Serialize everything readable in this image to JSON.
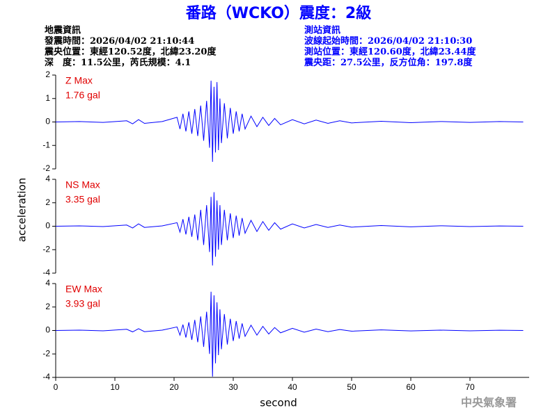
{
  "header": {
    "title": "番路（WCKO）震度：2級",
    "left_lines": [
      "地震資訊",
      "發震時間：2026/04/02 21:10:44",
      "震央位置：東經120.52度，北緯23.20度",
      "深　度：11.5公里，芮氏規模：4.1"
    ],
    "right_lines": [
      "測站資訊",
      "波線起始時間：2026/04/02 21:10:30",
      "測站位置：東經120.60度，北緯23.44度",
      "震央距：27.5公里，反方位角：197.8度"
    ]
  },
  "y_label": "acceleration",
  "x_label": "second",
  "footer": "中央氣象署",
  "chart_data": [
    {
      "type": "line",
      "label": "Z Max",
      "max_label": "1.76 gal",
      "color": "#0000ff",
      "label_color": "#e00000",
      "xlim": [
        0,
        80
      ],
      "ylim": [
        -2,
        2
      ],
      "yticks": [
        -2,
        -1,
        0,
        1,
        2
      ],
      "x": [
        0,
        4,
        8,
        12,
        13,
        14,
        15,
        18,
        20.5,
        21,
        21.5,
        22,
        22.5,
        23,
        23.5,
        24,
        24.5,
        25,
        25.5,
        26,
        26.25,
        26.5,
        26.75,
        27,
        27.25,
        27.5,
        27.75,
        28,
        28.5,
        29,
        29.5,
        30,
        30.5,
        31,
        31.5,
        32,
        33,
        34,
        35,
        36,
        37,
        38,
        40,
        42,
        44,
        46,
        48,
        50,
        55,
        60,
        65,
        70,
        75,
        79
      ],
      "values": [
        0,
        0.02,
        -0.02,
        0.05,
        -0.08,
        0.1,
        -0.06,
        0.02,
        0.2,
        -0.3,
        0.35,
        -0.4,
        0.45,
        -0.5,
        0.55,
        -0.6,
        0.7,
        -0.8,
        0.9,
        -1.1,
        1.76,
        -1.7,
        1.5,
        -1.3,
        1.7,
        -1.2,
        1.0,
        -0.9,
        0.8,
        -0.7,
        0.6,
        -0.5,
        0.45,
        -0.4,
        0.35,
        -0.3,
        0.25,
        -0.2,
        0.2,
        -0.15,
        0.15,
        -0.12,
        0.1,
        -0.08,
        0.08,
        -0.06,
        0.05,
        -0.04,
        0.03,
        -0.03,
        0.02,
        -0.02,
        0.02,
        0
      ]
    },
    {
      "type": "line",
      "label": "NS Max",
      "max_label": "3.35 gal",
      "color": "#0000ff",
      "label_color": "#e00000",
      "xlim": [
        0,
        80
      ],
      "ylim": [
        -4,
        4
      ],
      "yticks": [
        -4,
        -2,
        0,
        2,
        4
      ],
      "x": [
        0,
        4,
        8,
        12,
        13,
        14,
        15,
        18,
        20.5,
        21,
        21.5,
        22,
        22.5,
        23,
        23.5,
        24,
        24.5,
        25,
        25.5,
        26,
        26.25,
        26.5,
        26.75,
        27,
        27.25,
        27.5,
        27.75,
        28,
        28.5,
        29,
        29.5,
        30,
        30.5,
        31,
        31.5,
        32,
        33,
        34,
        35,
        36,
        37,
        38,
        40,
        42,
        44,
        46,
        48,
        50,
        55,
        60,
        65,
        70,
        75,
        79
      ],
      "values": [
        0,
        0.03,
        -0.03,
        0.1,
        -0.15,
        0.2,
        -0.1,
        0.03,
        0.3,
        -0.5,
        0.6,
        -0.7,
        0.8,
        -0.9,
        1.0,
        -1.2,
        1.4,
        -1.6,
        1.8,
        -2.2,
        2.5,
        -3.35,
        2.9,
        -2.6,
        2.2,
        -2.0,
        1.8,
        -1.6,
        1.4,
        -1.2,
        1.1,
        -1.0,
        0.9,
        -0.8,
        0.7,
        -0.6,
        0.5,
        -0.45,
        0.4,
        -0.35,
        0.3,
        -0.25,
        0.2,
        -0.15,
        0.15,
        -0.1,
        0.1,
        -0.08,
        0.06,
        -0.05,
        0.04,
        -0.03,
        0.02,
        0
      ]
    },
    {
      "type": "line",
      "label": "EW Max",
      "max_label": "3.93 gal",
      "color": "#0000ff",
      "label_color": "#e00000",
      "xlim": [
        0,
        80
      ],
      "ylim": [
        -4,
        4
      ],
      "yticks": [
        -4,
        -2,
        0,
        2,
        4
      ],
      "xticks": [
        0,
        10,
        20,
        30,
        40,
        50,
        60,
        70
      ],
      "x": [
        0,
        4,
        8,
        12,
        13,
        14,
        15,
        18,
        20.5,
        21,
        21.5,
        22,
        22.5,
        23,
        23.5,
        24,
        24.5,
        25,
        25.5,
        26,
        26.25,
        26.5,
        26.75,
        27,
        27.25,
        27.5,
        27.75,
        28,
        28.5,
        29,
        29.5,
        30,
        30.5,
        31,
        31.5,
        32,
        33,
        34,
        35,
        36,
        37,
        38,
        40,
        42,
        44,
        46,
        48,
        50,
        55,
        60,
        65,
        70,
        75,
        79
      ],
      "values": [
        0,
        0.03,
        -0.03,
        0.1,
        -0.12,
        0.15,
        -0.1,
        0.03,
        0.3,
        -0.4,
        0.5,
        -0.6,
        0.7,
        -0.8,
        0.9,
        -1.0,
        1.2,
        -1.4,
        1.6,
        -2.0,
        3.3,
        -3.93,
        3.0,
        -2.8,
        2.4,
        -2.1,
        1.8,
        -1.6,
        1.4,
        -1.2,
        1.0,
        -0.9,
        0.8,
        -0.7,
        0.6,
        -0.5,
        0.45,
        -0.4,
        0.35,
        -0.3,
        0.25,
        -0.2,
        0.18,
        -0.15,
        0.12,
        -0.1,
        0.08,
        -0.06,
        0.05,
        -0.04,
        0.03,
        -0.03,
        0.02,
        0
      ]
    }
  ]
}
